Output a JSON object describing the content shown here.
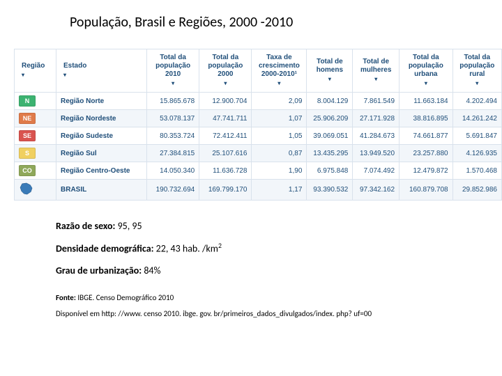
{
  "title": "População, Brasil e Regiões, 2000 -2010",
  "table": {
    "headers": {
      "regiao": "Região",
      "estado": "Estado",
      "pop2010": "Total da população 2010",
      "pop2000": "Total da população 2000",
      "taxa": "Taxa de crescimento 2000-2010¹",
      "homens": "Total de homens",
      "mulheres": "Total de mulheres",
      "urbana": "Total da população urbana",
      "rural": "Total da população rural"
    },
    "badges": [
      {
        "code": "N",
        "color": "#3cb371"
      },
      {
        "code": "NE",
        "color": "#e07b4a"
      },
      {
        "code": "SE",
        "color": "#d9534f"
      },
      {
        "code": "S",
        "color": "#f0d060"
      },
      {
        "code": "CO",
        "color": "#8fa85a"
      }
    ],
    "rows": [
      {
        "estado": "Região Norte",
        "pop2010": "15.865.678",
        "pop2000": "12.900.704",
        "taxa": "2,09",
        "homens": "8.004.129",
        "mulheres": "7.861.549",
        "urbana": "11.663.184",
        "rural": "4.202.494"
      },
      {
        "estado": "Região Nordeste",
        "pop2010": "53.078.137",
        "pop2000": "47.741.711",
        "taxa": "1,07",
        "homens": "25.906.209",
        "mulheres": "27.171.928",
        "urbana": "38.816.895",
        "rural": "14.261.242"
      },
      {
        "estado": "Região Sudeste",
        "pop2010": "80.353.724",
        "pop2000": "72.412.411",
        "taxa": "1,05",
        "homens": "39.069.051",
        "mulheres": "41.284.673",
        "urbana": "74.661.877",
        "rural": "5.691.847"
      },
      {
        "estado": "Região Sul",
        "pop2010": "27.384.815",
        "pop2000": "25.107.616",
        "taxa": "0,87",
        "homens": "13.435.295",
        "mulheres": "13.949.520",
        "urbana": "23.257.880",
        "rural": "4.126.935"
      },
      {
        "estado": "Região Centro-Oeste",
        "pop2010": "14.050.340",
        "pop2000": "11.636.728",
        "taxa": "1,90",
        "homens": "6.975.848",
        "mulheres": "7.074.492",
        "urbana": "12.479.872",
        "rural": "1.570.468"
      },
      {
        "estado": "BRASIL",
        "pop2010": "190.732.694",
        "pop2000": "169.799.170",
        "taxa": "1,17",
        "homens": "93.390.532",
        "mulheres": "97.342.162",
        "urbana": "160.879.708",
        "rural": "29.852.986"
      }
    ]
  },
  "stats": {
    "razao_label": "Razão de sexo:",
    "razao_value": " 95, 95",
    "dens_label": "Densidade demográfica:",
    "dens_value": " 22, 43 hab. /km",
    "urb_label": "Grau de urbanização:",
    "urb_value": " 84%"
  },
  "source": {
    "fonte_label": "Fonte:",
    "fonte_value": " IBGE. Censo Demográfico 2010",
    "disp": "Disponível em http: //www. censo 2010. ibge. gov. br/primeiros_dados_divulgados/index. php? uf=00"
  },
  "colors": {
    "header_text": "#1f4e79",
    "border": "#d9e2ec",
    "row_alt": "#f2f6fa",
    "background": "#ffffff"
  }
}
